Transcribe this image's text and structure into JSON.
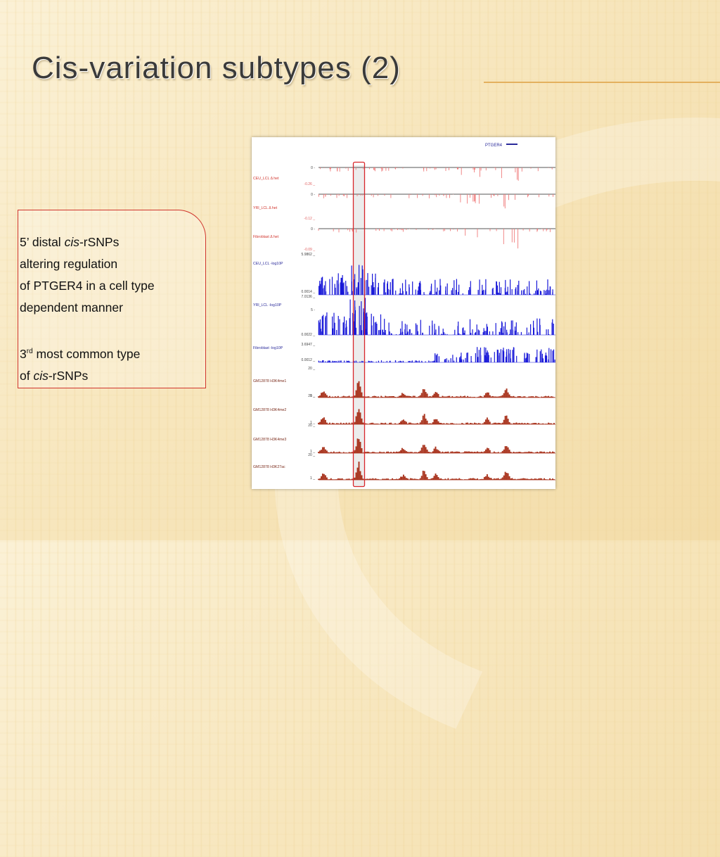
{
  "slide": {
    "title": "Cis-variation subtypes (2)",
    "body": {
      "p1_prefix": "5’ distal ",
      "p1_italic": "cis",
      "p1_suffix": "-rSNPs",
      "p1_line2": "altering regulation",
      "p1_line3": "of PTGER4 in a cell type",
      "p1_line4": "dependent manner",
      "p2_num": "3",
      "p2_sup": "rd",
      "p2_rest": " most common type",
      "p2_line2_prefix": "of ",
      "p2_line2_italic": "cis",
      "p2_line2_suffix": "-rSNPs"
    }
  },
  "figure": {
    "gene_label": "PTGER4",
    "tracks": [
      {
        "label": "CEU_LCL Δ het",
        "top_tick": "0 -",
        "bottom_tick": "-0.26 _",
        "color": "#ef7b7b"
      },
      {
        "label": "YRI_LCL Δ het",
        "top_tick": "0 -",
        "bottom_tick": "-0.12 _",
        "color": "#ef7b7b"
      },
      {
        "label": "Fibroblast Δ het",
        "top_tick": "0 -",
        "bottom_tick": "-0.09 _",
        "color": "#ef7b7b"
      },
      {
        "label": "CEU_LCL -log10P",
        "top_tick": "5.9862 _",
        "bottom_tick": "0.0014 _",
        "color": "#1818d8"
      },
      {
        "label": "YRI_LCL -log10P",
        "top_tick": "7.0136 _",
        "mid_tick": "5 -",
        "bottom_tick": "0.0022 _",
        "color": "#1818d8"
      },
      {
        "label": "Fibroblast -log10P",
        "top_tick": "3.6947 _",
        "bottom_tick": "0.0012 _",
        "color": "#1818d8"
      },
      {
        "label": "GM12878 H3K4me1",
        "top_tick": "20 _",
        "bottom_tick": "1 _",
        "color": "#a8321c"
      },
      {
        "label": "GM12878 H3K4me2",
        "top_tick": "20 _",
        "bottom_tick": "1 _",
        "color": "#a8321c"
      },
      {
        "label": "GM12878 H3K4me3",
        "top_tick": "20 _",
        "bottom_tick": "1 _",
        "color": "#a8321c"
      },
      {
        "label": "GM12878 H3K27ac",
        "top_tick": "20 _",
        "bottom_tick": "1 _",
        "color": "#a8321c"
      }
    ],
    "highlight_color": "#d8262b"
  }
}
